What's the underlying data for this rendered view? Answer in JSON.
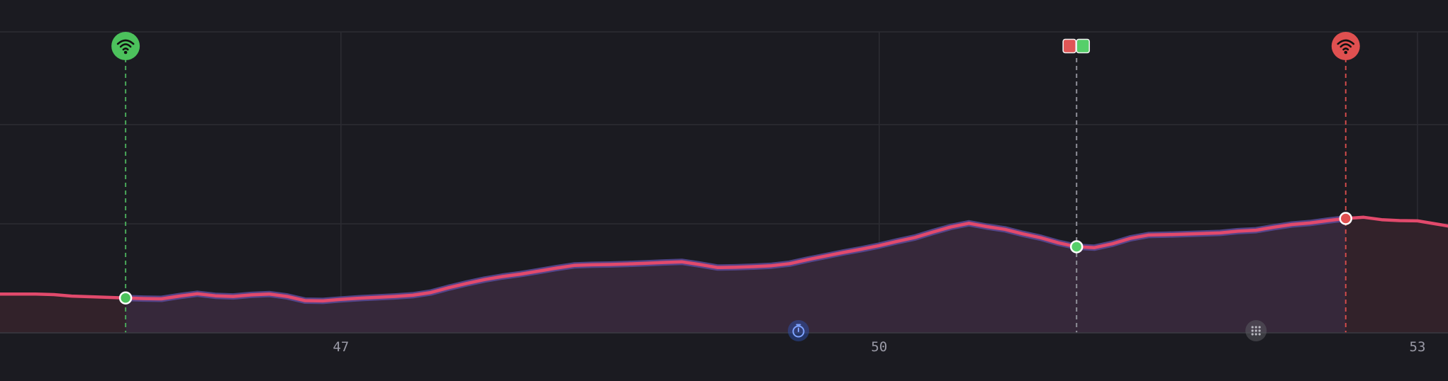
{
  "chart_data": {
    "type": "area",
    "title": "",
    "xlabel": "",
    "ylabel": "",
    "x_ticks": [
      47,
      50,
      53
    ],
    "x_tick_labels": [
      "47",
      "50",
      "53"
    ],
    "xlim": [
      45.1,
      53.17
    ],
    "ylim": [
      0,
      100
    ],
    "grid": true,
    "legend": "none",
    "series": [
      {
        "x": [
          45.1,
          45.2,
          45.3,
          45.4,
          45.5,
          45.6,
          45.7,
          45.8,
          45.9,
          46.0,
          46.1,
          46.2,
          46.3,
          46.4,
          46.5,
          46.6,
          46.7,
          46.8,
          46.9,
          47.0,
          47.1,
          47.2,
          47.3,
          47.4,
          47.5,
          47.6,
          47.7,
          47.8,
          47.9,
          48.0,
          48.1,
          48.2,
          48.3,
          48.4,
          48.5,
          48.6,
          48.7,
          48.8,
          48.9,
          49.0,
          49.1,
          49.2,
          49.3,
          49.4,
          49.5,
          49.6,
          49.7,
          49.8,
          49.9,
          50.0,
          50.1,
          50.2,
          50.3,
          50.4,
          50.5,
          50.6,
          50.7,
          50.8,
          50.9,
          51.0,
          51.1,
          51.2,
          51.3,
          51.4,
          51.5,
          51.6,
          51.7,
          51.8,
          51.9,
          52.0,
          52.1,
          52.2,
          52.3,
          52.4,
          52.5,
          52.6,
          52.7,
          52.8,
          52.9,
          53.0,
          53.1,
          53.17
        ],
        "y": [
          12.9,
          12.9,
          12.9,
          12.7,
          12.2,
          12.0,
          11.8,
          11.6,
          11.4,
          11.3,
          12.2,
          13.0,
          12.3,
          12.1,
          12.6,
          12.9,
          12.1,
          10.7,
          10.6,
          11.1,
          11.5,
          11.8,
          12.1,
          12.5,
          13.4,
          15.0,
          16.4,
          17.7,
          18.7,
          19.5,
          20.5,
          21.5,
          22.4,
          22.6,
          22.7,
          22.9,
          23.1,
          23.4,
          23.6,
          22.7,
          21.7,
          21.8,
          22.0,
          22.3,
          23.0,
          24.3,
          25.5,
          26.7,
          27.8,
          29.0,
          30.4,
          31.7,
          33.5,
          35.2,
          36.4,
          35.3,
          34.4,
          32.9,
          31.6,
          29.9,
          28.6,
          28.3,
          29.6,
          31.4,
          32.5,
          32.6,
          32.8,
          33.0,
          33.2,
          33.8,
          34.1,
          35.1,
          36.0,
          36.5,
          37.3,
          38.0,
          38.4,
          37.6,
          37.3,
          37.2,
          36.2,
          35.5
        ]
      }
    ],
    "markers": [
      {
        "x": 45.8,
        "y": 11.6,
        "kind": "connect",
        "color": "#4cc25c",
        "icon": "wifi-icon",
        "line_color": "#4aa85a"
      },
      {
        "x": 51.1,
        "y": 28.6,
        "kind": "switch",
        "colors": [
          "#e05656",
          "#56cf6a"
        ],
        "icon": "swap-flags-icon",
        "line_color": "#8f8f99"
      },
      {
        "x": 52.6,
        "y": 38.0,
        "kind": "disconnect",
        "color": "#e05050",
        "icon": "wifi-icon",
        "line_color": "#d04b4b"
      }
    ],
    "events": [
      {
        "x": 49.55,
        "kind": "timer",
        "icon": "stopwatch-icon",
        "color": "#2f55b8"
      },
      {
        "x": 52.1,
        "kind": "sparkle",
        "icon": "sparkle-icon",
        "color": "#5a5a60"
      }
    ],
    "colors": {
      "background": "#1b1b21",
      "grid": "#2c2c33",
      "line": "#e24a6c",
      "line_glow": "#5b4a98",
      "area_active": "#36283a",
      "area_inactive": "#32222a",
      "axis": "#3a3a42",
      "tick_text": "#9a9aa6"
    }
  }
}
